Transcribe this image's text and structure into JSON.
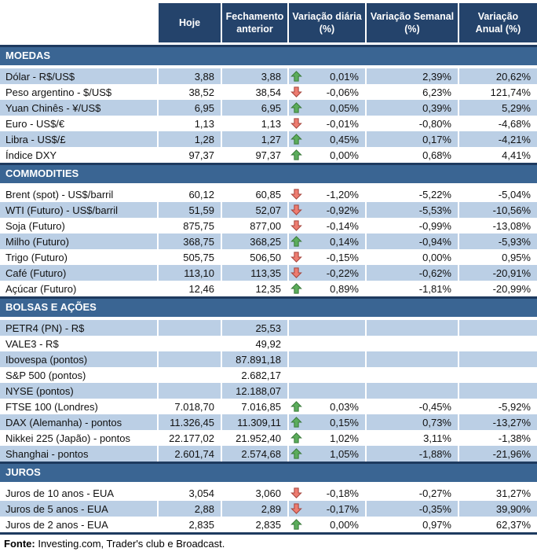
{
  "colors": {
    "header_bg": "#24436B",
    "section_bg": "#3A6593",
    "stripe_bg": "#BBCFE5",
    "border_dark": "#1E3A5F",
    "arrow_up_fill": "#5BAD5B",
    "arrow_up_stroke": "#3B7A3B",
    "arrow_down_fill": "#EE7C70",
    "arrow_down_stroke": "#A5453D"
  },
  "table": {
    "columns": [
      "",
      "Hoje",
      "Fechamento\nanterior",
      "Variação diária\n(%)",
      "Variação Semanal\n(%)",
      "Variação\nAnual (%)"
    ],
    "sections": [
      {
        "title": "MOEDAS",
        "stripe_offset": 0,
        "rows": [
          {
            "label": "Dólar - R$/US$",
            "hoje": "3,88",
            "fechamento": "3,88",
            "arrow": "up",
            "daily": "0,01%",
            "weekly": "2,39%",
            "annual": "20,62%"
          },
          {
            "label": "Peso argentino - $/US$",
            "hoje": "38,52",
            "fechamento": "38,54",
            "arrow": "down",
            "daily": "-0,06%",
            "weekly": "6,23%",
            "annual": "121,74%"
          },
          {
            "label": "Yuan Chinês - ¥/US$",
            "hoje": "6,95",
            "fechamento": "6,95",
            "arrow": "up",
            "daily": "0,05%",
            "weekly": "0,39%",
            "annual": "5,29%"
          },
          {
            "label": "Euro - US$/€",
            "hoje": "1,13",
            "fechamento": "1,13",
            "arrow": "down",
            "daily": "-0,01%",
            "weekly": "-0,80%",
            "annual": "-4,68%"
          },
          {
            "label": "Libra - US$/£",
            "hoje": "1,28",
            "fechamento": "1,27",
            "arrow": "up",
            "daily": "0,45%",
            "weekly": "0,17%",
            "annual": "-4,21%"
          },
          {
            "label": "Índice DXY",
            "hoje": "97,37",
            "fechamento": "97,37",
            "arrow": "up",
            "daily": "0,00%",
            "weekly": "0,68%",
            "annual": "4,41%"
          }
        ]
      },
      {
        "title": "COMMODITIES",
        "stripe_offset": 1,
        "rows": [
          {
            "label": "Brent (spot) - US$/barril",
            "hoje": "60,12",
            "fechamento": "60,85",
            "arrow": "down",
            "daily": "-1,20%",
            "weekly": "-5,22%",
            "annual": "-5,04%"
          },
          {
            "label": "WTI (Futuro) - US$/barril",
            "hoje": "51,59",
            "fechamento": "52,07",
            "arrow": "down",
            "daily": "-0,92%",
            "weekly": "-5,53%",
            "annual": "-10,56%"
          },
          {
            "label": "Soja (Futuro)",
            "hoje": "875,75",
            "fechamento": "877,00",
            "arrow": "down",
            "daily": "-0,14%",
            "weekly": "-0,99%",
            "annual": "-13,08%"
          },
          {
            "label": "Milho (Futuro)",
            "hoje": "368,75",
            "fechamento": "368,25",
            "arrow": "up",
            "daily": "0,14%",
            "weekly": "-0,94%",
            "annual": "-5,93%"
          },
          {
            "label": "Trigo (Futuro)",
            "hoje": "505,75",
            "fechamento": "506,50",
            "arrow": "down",
            "daily": "-0,15%",
            "weekly": "0,00%",
            "annual": "0,95%"
          },
          {
            "label": "Café (Futuro)",
            "hoje": "113,10",
            "fechamento": "113,35",
            "arrow": "down",
            "daily": "-0,22%",
            "weekly": "-0,62%",
            "annual": "-20,91%"
          },
          {
            "label": "Açúcar (Futuro)",
            "hoje": "12,46",
            "fechamento": "12,35",
            "arrow": "up",
            "daily": "0,89%",
            "weekly": "-1,81%",
            "annual": "-20,99%"
          }
        ]
      },
      {
        "title": "BOLSAS E AÇÕES",
        "stripe_offset": 0,
        "rows": [
          {
            "label": "PETR4 (PN) - R$",
            "hoje": "",
            "fechamento": "25,53",
            "arrow": null,
            "daily": "",
            "weekly": "",
            "annual": ""
          },
          {
            "label": "VALE3 - R$",
            "hoje": "",
            "fechamento": "49,92",
            "arrow": null,
            "daily": "",
            "weekly": "",
            "annual": ""
          },
          {
            "label": "Ibovespa (pontos)",
            "hoje": "",
            "fechamento": "87.891,18",
            "arrow": null,
            "daily": "",
            "weekly": "",
            "annual": ""
          },
          {
            "label": "S&P 500 (pontos)",
            "hoje": "",
            "fechamento": "2.682,17",
            "arrow": null,
            "daily": "",
            "weekly": "",
            "annual": ""
          },
          {
            "label": "NYSE (pontos)",
            "hoje": "",
            "fechamento": "12.188,07",
            "arrow": null,
            "daily": "",
            "weekly": "",
            "annual": ""
          },
          {
            "label": "FTSE 100 (Londres)",
            "hoje": "7.018,70",
            "fechamento": "7.016,85",
            "arrow": "up",
            "daily": "0,03%",
            "weekly": "-0,45%",
            "annual": "-5,92%"
          },
          {
            "label": "DAX (Alemanha) - pontos",
            "hoje": "11.326,45",
            "fechamento": "11.309,11",
            "arrow": "up",
            "daily": "0,15%",
            "weekly": "0,73%",
            "annual": "-13,27%"
          },
          {
            "label": "Nikkei 225 (Japão) - pontos",
            "hoje": "22.177,02",
            "fechamento": "21.952,40",
            "arrow": "up",
            "daily": "1,02%",
            "weekly": "3,11%",
            "annual": "-1,38%"
          },
          {
            "label": "Shanghai - pontos",
            "hoje": "2.601,74",
            "fechamento": "2.574,68",
            "arrow": "up",
            "daily": "1,05%",
            "weekly": "-1,88%",
            "annual": "-21,96%"
          }
        ]
      },
      {
        "title": "JUROS",
        "stripe_offset": 1,
        "rows": [
          {
            "label": "Juros de 10 anos - EUA",
            "hoje": "3,054",
            "fechamento": "3,060",
            "arrow": "down",
            "daily": "-0,18%",
            "weekly": "-0,27%",
            "annual": "31,27%"
          },
          {
            "label": "Juros de 5 anos - EUA",
            "hoje": "2,88",
            "fechamento": "2,89",
            "arrow": "down",
            "daily": "-0,17%",
            "weekly": "-0,35%",
            "annual": "39,90%"
          },
          {
            "label": "Juros de 2 anos - EUA",
            "hoje": "2,835",
            "fechamento": "2,835",
            "arrow": "up",
            "daily": "0,00%",
            "weekly": "0,97%",
            "annual": "62,37%"
          }
        ]
      }
    ]
  },
  "footer": {
    "label": "Fonte:",
    "text": " Investing.com, Trader's club e Broadcast."
  }
}
